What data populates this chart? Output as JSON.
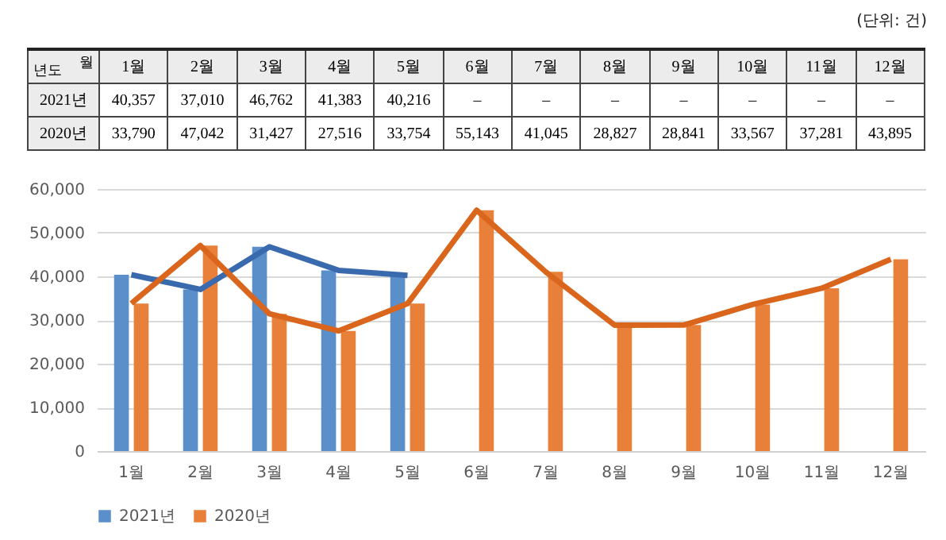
{
  "chart_data": {
    "type": "bar",
    "categories": [
      "1월",
      "2월",
      "3월",
      "4월",
      "5월",
      "6월",
      "7월",
      "8월",
      "9월",
      "10월",
      "11월",
      "12월"
    ],
    "series": [
      {
        "name": "2021년",
        "color": "#5b8fc9",
        "values": [
          40357,
          37010,
          46762,
          41383,
          40216,
          null,
          null,
          null,
          null,
          null,
          null,
          null
        ],
        "value_labels": [
          "40,357",
          "37,010",
          "46,762",
          "41,383",
          "40,216",
          "–",
          "–",
          "–",
          "–",
          "–",
          "–",
          "–"
        ]
      },
      {
        "name": "2020년",
        "color": "#e8803a",
        "values": [
          33790,
          47042,
          31427,
          27516,
          33754,
          55143,
          41045,
          28827,
          28841,
          33567,
          37281,
          43895
        ],
        "value_labels": [
          "33,790",
          "47,042",
          "31,427",
          "27,516",
          "33,754",
          "55,143",
          "41,045",
          "28,827",
          "28,841",
          "33,567",
          "37,281",
          "43,895"
        ]
      },
      {
        "type": "line",
        "color": "#3a6aae",
        "values": [
          40357,
          37010,
          46762,
          41383,
          40216,
          null,
          null,
          null,
          null,
          null,
          null,
          null
        ]
      },
      {
        "type": "line",
        "color": "#d9661c",
        "values": [
          33790,
          47042,
          31427,
          27516,
          33754,
          55143,
          41045,
          28827,
          28841,
          33567,
          37281,
          43895
        ]
      }
    ],
    "ylim": [
      0,
      60000
    ],
    "yticks": [
      {
        "value": 0,
        "label": "0"
      },
      {
        "value": 10000,
        "label": "10,000"
      },
      {
        "value": 20000,
        "label": "20,000"
      },
      {
        "value": 30000,
        "label": "30,000"
      },
      {
        "value": 40000,
        "label": "40,000"
      },
      {
        "value": 50000,
        "label": "50,000"
      },
      {
        "value": 60000,
        "label": "60,000"
      }
    ],
    "grid": "y",
    "legend": "bottom",
    "annotations": [
      "(단위: 건)",
      "월",
      "년도"
    ]
  }
}
